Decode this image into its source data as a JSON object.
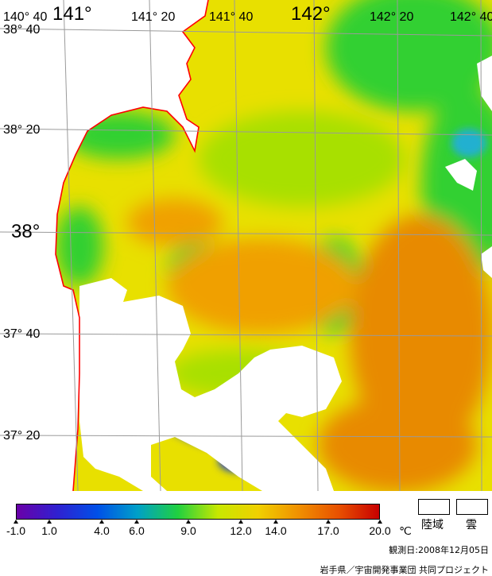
{
  "map": {
    "lon_labels": [
      "140° 40",
      "141°",
      "141° 20",
      "141° 40",
      "142°",
      "142° 20",
      "142° 40"
    ],
    "lat_labels": [
      "38° 40",
      "38° 20",
      "38°",
      "37° 40",
      "37° 20"
    ],
    "colors": {
      "land": "#ffffff",
      "coast": "#ff0000",
      "grid": "#9a9a9a",
      "sst_yellow": "#e8e000",
      "sst_lime": "#a8e000",
      "sst_green": "#30d030",
      "sst_orange": "#f0a000",
      "sst_darkorange": "#e88a00",
      "sst_blue": "#1030e0",
      "sst_cyan": "#20b0d0"
    }
  },
  "legend": {
    "unit": "℃",
    "ticks": [
      "-1.0",
      "1.0",
      "4.0",
      "6.0",
      "9.0",
      "12.0",
      "14.0",
      "17.0",
      "20.0"
    ],
    "colorscale": [
      "#6a00a8",
      "#3020d0",
      "#0050e8",
      "#00a0c8",
      "#20d040",
      "#c8e800",
      "#f0d000",
      "#f09000",
      "#e85000",
      "#c80000"
    ],
    "key_land": "陸域",
    "key_cloud": "雲"
  },
  "footer": {
    "obs_date": "観測日:2008年12月05日",
    "credit": "岩手県／宇宙開発事業団 共同プロジェクト"
  }
}
